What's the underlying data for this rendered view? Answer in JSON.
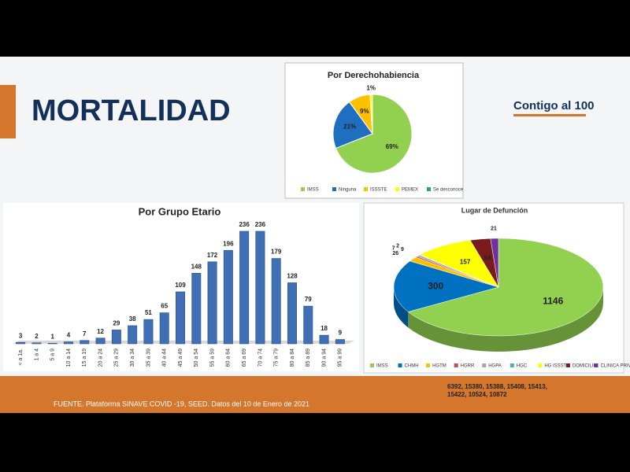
{
  "header": {
    "title": "MORTALIDAD",
    "logo": "Contigo al 100"
  },
  "chart_data": [
    {
      "type": "pie",
      "title": "Por Derechohabiencia",
      "categories": [
        "IMSS",
        "Ninguna",
        "ISSSTE",
        "PEMEX",
        "Se desconoce"
      ],
      "values": [
        69,
        21,
        9,
        1,
        0
      ],
      "value_labels": [
        "69%",
        "21%",
        "9%",
        "1%",
        null
      ],
      "colors": [
        "#92d050",
        "#1f6fc1",
        "#ffc000",
        "#ffff00",
        "#2e9e8a"
      ]
    },
    {
      "type": "bar",
      "title": "Por Grupo Etario",
      "categories": [
        "< a 1a.",
        "1 a 4",
        "5 a 9",
        "10 a 14",
        "15 a 19",
        "20 a 24",
        "25 a 29",
        "30 a 34",
        "35 a 39",
        "40 a 44",
        "45 a 49",
        "50 a 54",
        "55 a 59",
        "60 a 64",
        "65 a 69",
        "70 a 74",
        "75 a 79",
        "80 a 84",
        "85 a 89",
        "90 a 94",
        "95 a 99"
      ],
      "values": [
        3,
        2,
        1,
        4,
        7,
        12,
        29,
        38,
        51,
        65,
        109,
        148,
        172,
        196,
        236,
        236,
        179,
        128,
        79,
        18,
        9
      ],
      "color": "#3f6fb5"
    },
    {
      "type": "pie3d",
      "title": "Lugar de Defunción",
      "categories": [
        "IMSS",
        "CHMH",
        "HGTM",
        "HGRR",
        "HGPA",
        "HGC",
        "HG ISSSTE",
        "DOMICILIO",
        "CLINICA PRIVADA"
      ],
      "values": [
        1146,
        300,
        26,
        7,
        9,
        2,
        157,
        54,
        21
      ],
      "colors": [
        "#92d050",
        "#0070c0",
        "#ffc000",
        "#c0504d",
        "#a6a6a6",
        "#4bacc6",
        "#ffff00",
        "#7b1c1c",
        "#7030a0"
      ]
    }
  ],
  "footer": {
    "source": "FUENTE. Plataforma SINAVE COVID -19, SEED. Datos del 10 de Enero de 2021",
    "folios": [
      "6392, 15380, 15388, 15408, 15413,",
      "15422, 10524, 10872"
    ]
  }
}
